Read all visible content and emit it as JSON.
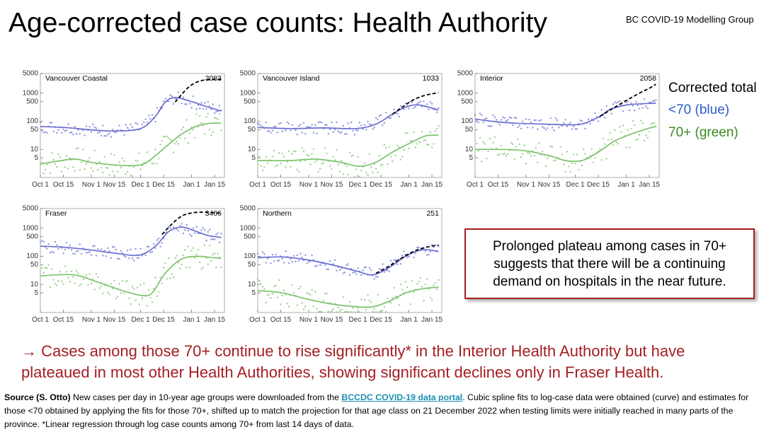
{
  "header": {
    "title": "Age-corrected case counts: Health Authority",
    "group": "BC COVID-19 Modelling Group"
  },
  "legend": {
    "total": "Corrected total",
    "under70": "<70 (blue)",
    "over70": "70+ (green)"
  },
  "colors": {
    "under70": "#6b6fd0",
    "over70": "#7bc36b",
    "total": "#000000",
    "legend_under70": "#2f5cc8",
    "legend_over70": "#3c8a22",
    "accent": "#a41e22",
    "link": "#1a8fb0"
  },
  "callout": {
    "lines": [
      "Prolonged plateau among cases in 70+",
      "suggests that there will be a continuing",
      "demand on hospitals in the near future."
    ]
  },
  "conclusion": {
    "lines": [
      "→ Cases among those 70+ continue to rise significantly* in the Interior Health Authority but have",
      "plateaued in most other Health Authorities, showing significant declines only in Fraser Health."
    ]
  },
  "source": {
    "label": "Source (S. Otto)",
    "text1": " New cases per day in 10-year age groups were downloaded from the ",
    "link": "BCCDC COVID-19 data portal",
    "text2": ". Cubic spline fits to log-case data were obtained (curve) and estimates for those <70 obtained by applying the fits for those 70+, shifted up to match the projection for that age class on 21 December 2022 when testing limits were initially reached in many parts of the province. *Linear regression through log case counts among 70+ from last 14 days of data."
  },
  "chart_data": [
    {
      "type": "scatter",
      "title": "Vancouver Coastal",
      "annotation": "3083",
      "log_y": true,
      "ylim": [
        1,
        5000
      ],
      "y_ticks": [
        "5000",
        "1000",
        "500",
        "100",
        "50",
        "10",
        "5"
      ],
      "x_ticks": [
        "Oct 1",
        "Oct 15",
        "Nov 1",
        "Nov 15",
        "Dec 1",
        "Dec 15",
        "Jan 1",
        "Jan 15"
      ],
      "series": [
        {
          "key": "total",
          "x": [
            82,
            86,
            90,
            94,
            98,
            102,
            106,
            110
          ],
          "values": [
            480,
            900,
            1600,
            2300,
            2800,
            3000,
            3083,
            3083
          ]
        },
        {
          "key": "under70",
          "x": [
            0,
            15,
            30,
            45,
            61,
            70,
            76,
            82,
            92,
            100,
            110
          ],
          "values": [
            65,
            60,
            50,
            45,
            55,
            150,
            480,
            700,
            500,
            350,
            230
          ]
        },
        {
          "key": "over70",
          "x": [
            0,
            20,
            30,
            45,
            61,
            70,
            78,
            86,
            96,
            104,
            110
          ],
          "values": [
            3,
            4.5,
            3.5,
            2.8,
            2.8,
            6,
            15,
            35,
            70,
            85,
            85
          ]
        }
      ]
    },
    {
      "type": "scatter",
      "title": "Vancouver Island",
      "annotation": "1033",
      "log_y": true,
      "ylim": [
        1,
        5000
      ],
      "y_ticks": [
        "5000",
        "1000",
        "500",
        "100",
        "50",
        "10",
        "5"
      ],
      "x_ticks": [
        "Oct 1",
        "Oct 15",
        "Nov 1",
        "Nov 15",
        "Dec 1",
        "Dec 15",
        "Jan 1",
        "Jan 15"
      ],
      "series": [
        {
          "key": "total",
          "x": [
            82,
            88,
            94,
            100,
            106,
            110
          ],
          "values": [
            180,
            320,
            550,
            780,
            950,
            1033
          ]
        },
        {
          "key": "under70",
          "x": [
            0,
            20,
            40,
            60,
            72,
            82,
            90,
            98,
            110
          ],
          "values": [
            60,
            55,
            58,
            55,
            80,
            180,
            320,
            380,
            250
          ]
        },
        {
          "key": "over70",
          "x": [
            0,
            20,
            35,
            50,
            62,
            72,
            82,
            92,
            102,
            110
          ],
          "values": [
            4,
            4,
            4.5,
            3.5,
            2.5,
            3.5,
            8,
            16,
            30,
            32
          ]
        }
      ]
    },
    {
      "type": "scatter",
      "title": "Interior",
      "annotation": "2058",
      "log_y": true,
      "ylim": [
        1,
        5000
      ],
      "y_ticks": [
        "5000",
        "1000",
        "500",
        "100",
        "50",
        "10",
        "5"
      ],
      "x_ticks": [
        "Oct 1",
        "Oct 15",
        "Nov 1",
        "Nov 15",
        "Dec 1",
        "Dec 15",
        "Jan 1",
        "Jan 15"
      ],
      "series": [
        {
          "key": "total",
          "x": [
            76,
            84,
            92,
            100,
            106,
            110
          ],
          "values": [
            150,
            290,
            550,
            1000,
            1500,
            2058
          ]
        },
        {
          "key": "under70",
          "x": [
            0,
            10,
            25,
            40,
            55,
            65,
            75,
            82,
            92,
            102,
            110
          ],
          "values": [
            120,
            100,
            85,
            80,
            75,
            80,
            140,
            260,
            380,
            420,
            440
          ]
        },
        {
          "key": "over70",
          "x": [
            0,
            15,
            30,
            45,
            55,
            65,
            75,
            85,
            95,
            105,
            110
          ],
          "values": [
            10,
            10,
            9,
            6,
            4,
            4,
            8,
            20,
            35,
            55,
            65
          ]
        }
      ]
    },
    {
      "type": "scatter",
      "title": "Fraser",
      "annotation": "3466",
      "log_y": true,
      "ylim": [
        1,
        5000
      ],
      "y_ticks": [
        "5000",
        "1000",
        "500",
        "100",
        "50",
        "10",
        "5"
      ],
      "x_ticks": [
        "Oct 1",
        "Oct 15",
        "Nov 1",
        "Nov 15",
        "Dec 1",
        "Dec 15",
        "Jan 1",
        "Jan 15"
      ],
      "series": [
        {
          "key": "total",
          "x": [
            74,
            80,
            86,
            92,
            98,
            104,
            110
          ],
          "values": [
            600,
            1400,
            2700,
            3500,
            3700,
            3600,
            3466
          ]
        },
        {
          "key": "under70",
          "x": [
            0,
            15,
            30,
            45,
            60,
            70,
            78,
            86,
            94,
            102,
            110
          ],
          "values": [
            230,
            210,
            170,
            130,
            110,
            230,
            750,
            1100,
            800,
            550,
            470
          ]
        },
        {
          "key": "over70",
          "x": [
            0,
            20,
            35,
            50,
            62,
            68,
            76,
            86,
            96,
            104,
            110
          ],
          "values": [
            20,
            22,
            12,
            6,
            4,
            5,
            25,
            80,
            100,
            90,
            85
          ]
        }
      ]
    },
    {
      "type": "scatter",
      "title": "Northern",
      "annotation": "251",
      "log_y": true,
      "ylim": [
        1,
        5000
      ],
      "y_ticks": [
        "5000",
        "1000",
        "500",
        "100",
        "50",
        "10",
        "5"
      ],
      "x_ticks": [
        "Oct 1",
        "Oct 15",
        "Nov 1",
        "Nov 15",
        "Dec 1",
        "Dec 15",
        "Jan 1",
        "Jan 15"
      ],
      "series": [
        {
          "key": "total",
          "x": [
            72,
            80,
            88,
            96,
            104,
            110
          ],
          "values": [
            25,
            45,
            90,
            160,
            220,
            251
          ]
        },
        {
          "key": "under70",
          "x": [
            0,
            15,
            30,
            45,
            60,
            70,
            80,
            90,
            100,
            110
          ],
          "values": [
            90,
            95,
            75,
            50,
            30,
            22,
            40,
            100,
            170,
            150
          ]
        },
        {
          "key": "over70",
          "x": [
            0,
            15,
            30,
            45,
            60,
            70,
            80,
            90,
            100,
            110
          ],
          "values": [
            6,
            5,
            3,
            2,
            1.6,
            1.6,
            2.5,
            5,
            7,
            8
          ]
        }
      ]
    }
  ]
}
